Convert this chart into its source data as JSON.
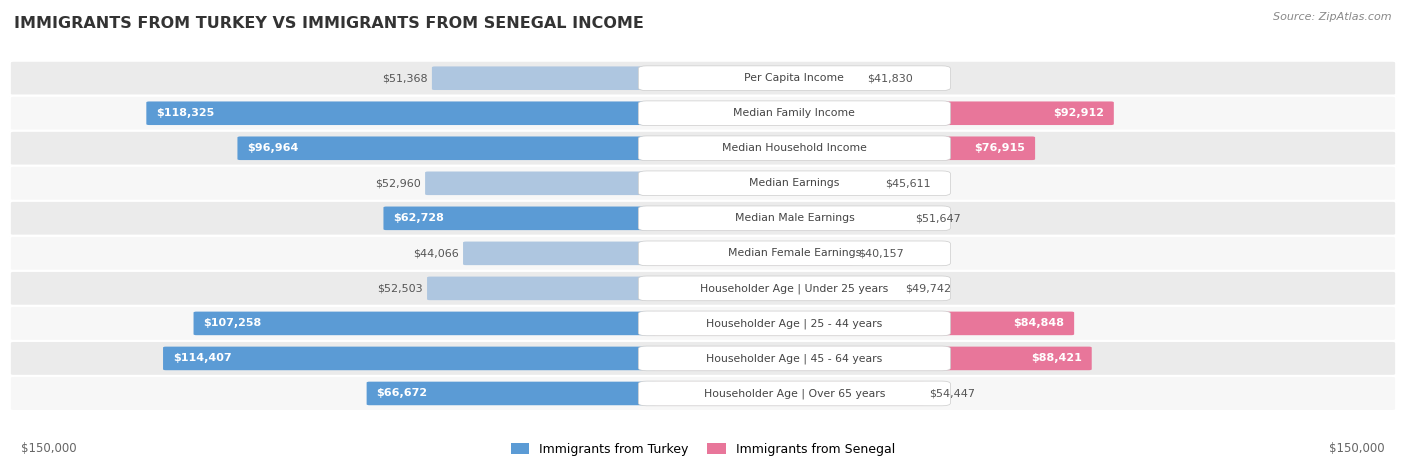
{
  "title": "IMMIGRANTS FROM TURKEY VS IMMIGRANTS FROM SENEGAL INCOME",
  "source": "Source: ZipAtlas.com",
  "categories": [
    "Per Capita Income",
    "Median Family Income",
    "Median Household Income",
    "Median Earnings",
    "Median Male Earnings",
    "Median Female Earnings",
    "Householder Age | Under 25 years",
    "Householder Age | 25 - 44 years",
    "Householder Age | 45 - 64 years",
    "Householder Age | Over 65 years"
  ],
  "turkey_values": [
    51368,
    118325,
    96964,
    52960,
    62728,
    44066,
    52503,
    107258,
    114407,
    66672
  ],
  "senegal_values": [
    41830,
    92912,
    76915,
    45611,
    51647,
    40157,
    49742,
    84848,
    88421,
    54447
  ],
  "turkey_labels": [
    "$51,368",
    "$118,325",
    "$96,964",
    "$52,960",
    "$62,728",
    "$44,066",
    "$52,503",
    "$107,258",
    "$114,407",
    "$66,672"
  ],
  "senegal_labels": [
    "$41,830",
    "$92,912",
    "$76,915",
    "$45,611",
    "$51,647",
    "$40,157",
    "$49,742",
    "$84,848",
    "$88,421",
    "$54,447"
  ],
  "turkey_color_light": "#aec6e0",
  "turkey_color_strong": "#5b9bd5",
  "senegal_color_light": "#f4b8cb",
  "senegal_color_strong": "#e8769a",
  "max_value": 150000,
  "legend_turkey": "Immigrants from Turkey",
  "legend_senegal": "Immigrants from Senegal",
  "row_bg_odd": "#ebebeb",
  "row_bg_even": "#f7f7f7",
  "ylabel_left": "$150,000",
  "ylabel_right": "$150,000",
  "label_threshold": 60000
}
